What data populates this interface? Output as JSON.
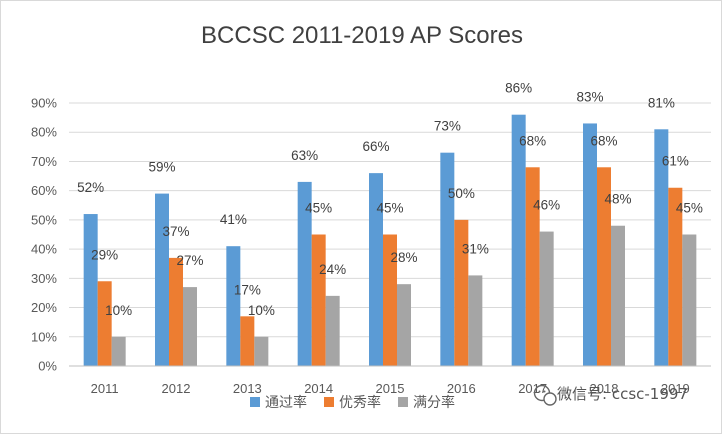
{
  "colors": {
    "pass": "#5B9BD5",
    "excellent": "#ED7D31",
    "full": "#A5A5A5",
    "text": "#404040",
    "grid": "#d9d9d9"
  },
  "watermark": {
    "icon": "wechat-icon",
    "text": "微信号: ccsc-1997"
  },
  "chart_data": {
    "type": "bar",
    "title": "BCCSC 2011-2019 AP Scores",
    "categories": [
      "2011",
      "2012",
      "2013",
      "2014",
      "2015",
      "2016",
      "2017",
      "2018",
      "2019"
    ],
    "series": [
      {
        "name": "通过率",
        "values": [
          52,
          59,
          41,
          63,
          66,
          73,
          86,
          83,
          81
        ]
      },
      {
        "name": "优秀率",
        "values": [
          29,
          37,
          17,
          45,
          45,
          50,
          68,
          68,
          61
        ]
      },
      {
        "name": "满分率",
        "values": [
          10,
          27,
          10,
          24,
          28,
          31,
          46,
          48,
          45
        ]
      }
    ],
    "yticks": [
      "0%",
      "10%",
      "20%",
      "30%",
      "40%",
      "50%",
      "60%",
      "70%",
      "80%",
      "90%"
    ],
    "ylim": [
      0,
      90
    ],
    "value_suffix": "%",
    "legend_position": "bottom",
    "grid": true,
    "xlabel": "",
    "ylabel": ""
  }
}
